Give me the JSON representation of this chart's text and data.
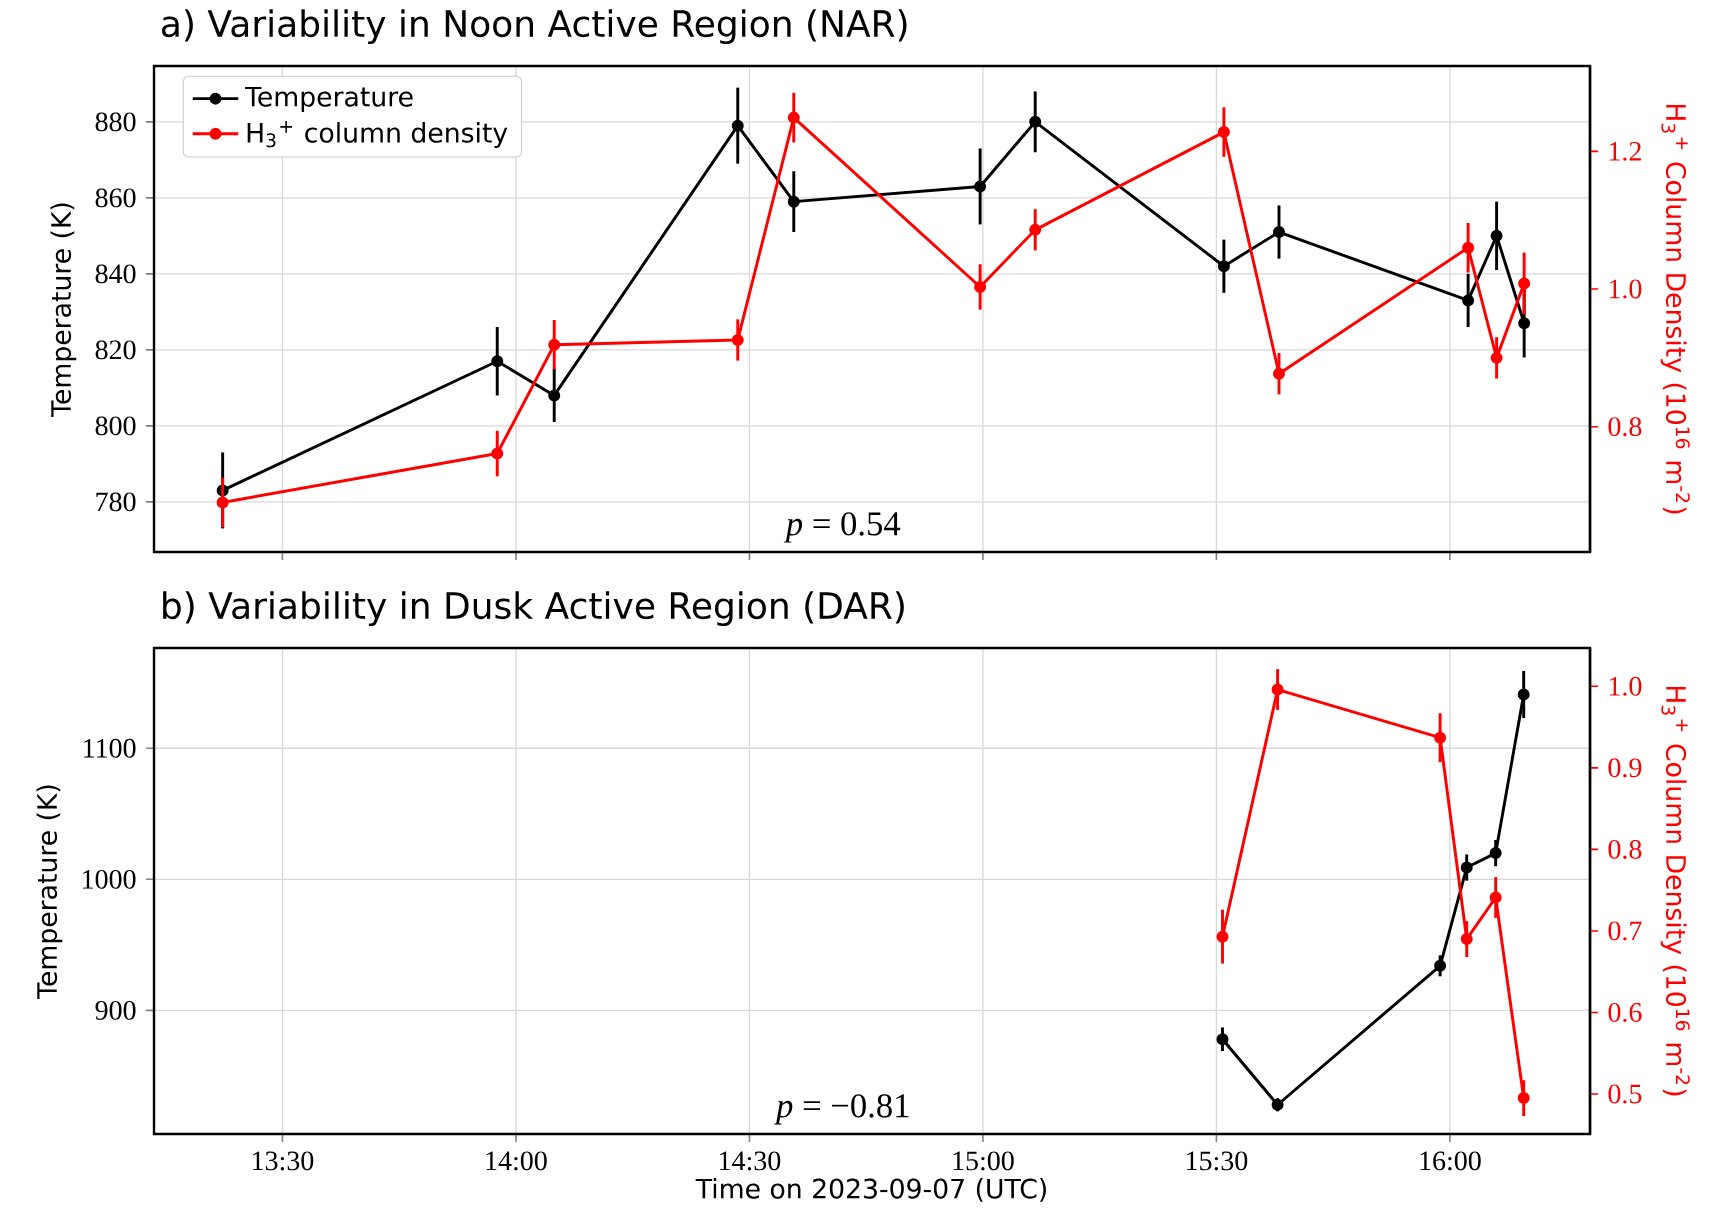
{
  "chart_data": [
    {
      "type": "line",
      "title": "a) Variability in Noon Active Region (NAR)",
      "ylabel": "Temperature (K)",
      "y2label": "H$_{3}$$^{+}$ Column Density (10$^{16}$ m$^{-2}$)",
      "x": [
        13.372,
        13.96,
        14.082,
        14.475,
        14.595,
        14.994,
        15.112,
        15.516,
        15.634,
        16.039,
        16.1,
        16.159
      ],
      "series": [
        {
          "name": "Temperature",
          "color": "#000000",
          "values": [
            783,
            817,
            808,
            879,
            859,
            863,
            880,
            842,
            851,
            833,
            850,
            827
          ],
          "errors": [
            10,
            9,
            7,
            10,
            8,
            10,
            8,
            7,
            7,
            7,
            9,
            9
          ]
        },
        {
          "name": "H$_{3}$$^{+}$ column density",
          "color": "#ff0000",
          "axis": "y2",
          "values": [
            0.69,
            0.761,
            0.919,
            0.926,
            1.249,
            1.003,
            1.086,
            1.228,
            0.877,
            1.06,
            0.9,
            1.008
          ],
          "errors": [
            0.036,
            0.033,
            0.036,
            0.03,
            0.036,
            0.033,
            0.03,
            0.036,
            0.03,
            0.036,
            0.03,
            0.045
          ]
        }
      ],
      "xlim": [
        13.225,
        16.3
      ],
      "ylim": [
        766.8,
        894.7
      ],
      "y2lim": [
        0.618,
        1.324
      ],
      "xticks": [
        {
          "value": 13.5,
          "label": null
        },
        {
          "value": 14.0,
          "label": null
        },
        {
          "value": 14.5,
          "label": null
        },
        {
          "value": 15.0,
          "label": null
        },
        {
          "value": 15.5,
          "label": null
        },
        {
          "value": 16.0,
          "label": null
        }
      ],
      "yticks": [
        780,
        800,
        820,
        840,
        860,
        880
      ],
      "y2ticks": [
        0.8,
        {
          "value": 1.0,
          "label": "1.0"
        },
        1.2
      ],
      "annotations": [
        "*p* = 0.54"
      ],
      "grid": true,
      "legend": "top left",
      "marker": "circle",
      "line_style": "solid",
      "tick_labels": "y"
    },
    {
      "type": "line",
      "title": "b) Variability in Dusk Active Region (DAR)",
      "xlabel": "Time on 2023-09-07 (UTC)",
      "ylabel": "Temperature (K)",
      "y2label": "H$_{3}$$^{+}$ Column Density (10$^{16}$ m$^{-2}$)",
      "x": [
        15.513,
        15.631,
        15.979,
        16.036,
        16.098,
        16.158
      ],
      "series": [
        {
          "color": "#000000",
          "values": [
            878,
            828,
            934,
            1009,
            1020,
            1141
          ],
          "errors": [
            9,
            5,
            8,
            10,
            10,
            18
          ]
        },
        {
          "color": "#ff0000",
          "axis": "y2",
          "values": [
            0.693,
            0.996,
            0.937,
            0.69,
            0.741,
            0.495
          ],
          "errors": [
            0.033,
            0.025,
            0.03,
            0.022,
            0.025,
            0.022
          ]
        }
      ],
      "xlim": [
        13.225,
        16.3
      ],
      "ylim": [
        805.7,
        1176.5
      ],
      "y2lim": [
        0.451,
        1.047
      ],
      "xticks": [
        {
          "value": 13.5,
          "label": "13:30"
        },
        {
          "value": 14.0,
          "label": "14:00"
        },
        {
          "value": 14.5,
          "label": "14:30"
        },
        {
          "value": 15.0,
          "label": "15:00"
        },
        {
          "value": 15.5,
          "label": "15:30"
        },
        {
          "value": 16.0,
          "label": "16:00"
        }
      ],
      "yticks": [
        900,
        1000,
        1100
      ],
      "y2ticks": [
        0.5,
        0.6,
        0.7,
        0.8,
        0.9,
        {
          "value": 1.0,
          "label": "1.0"
        }
      ],
      "annotations": [
        "*p* = −0.81"
      ],
      "grid": true,
      "marker": "circle",
      "line_style": "solid"
    }
  ]
}
